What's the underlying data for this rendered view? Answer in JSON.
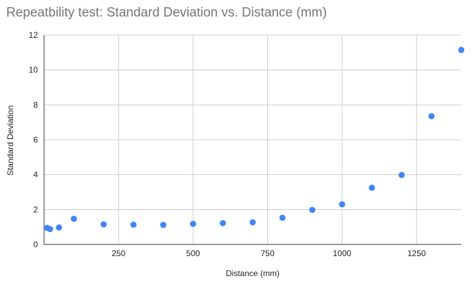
{
  "chart_data": {
    "type": "scatter",
    "title": "Repeatbility test: Standard Deviation vs. Distance (mm)",
    "xlabel": "Distance (mm)",
    "ylabel": "Standard Deviation",
    "xlim": [
      0,
      1400
    ],
    "ylim": [
      0,
      12
    ],
    "x_ticks": [
      250,
      500,
      750,
      1000,
      1250
    ],
    "y_ticks": [
      0,
      2,
      4,
      6,
      8,
      10,
      12
    ],
    "grid": true,
    "legend": "none",
    "color": "#4285f4",
    "points": [
      {
        "x": 10,
        "y": 0.95
      },
      {
        "x": 20,
        "y": 0.88
      },
      {
        "x": 50,
        "y": 0.97
      },
      {
        "x": 100,
        "y": 1.47
      },
      {
        "x": 200,
        "y": 1.15
      },
      {
        "x": 300,
        "y": 1.13
      },
      {
        "x": 400,
        "y": 1.12
      },
      {
        "x": 500,
        "y": 1.18
      },
      {
        "x": 600,
        "y": 1.22
      },
      {
        "x": 700,
        "y": 1.27
      },
      {
        "x": 800,
        "y": 1.53
      },
      {
        "x": 900,
        "y": 1.98
      },
      {
        "x": 1000,
        "y": 2.3
      },
      {
        "x": 1100,
        "y": 3.25
      },
      {
        "x": 1200,
        "y": 3.98
      },
      {
        "x": 1300,
        "y": 7.35
      },
      {
        "x": 1400,
        "y": 11.15
      }
    ]
  }
}
